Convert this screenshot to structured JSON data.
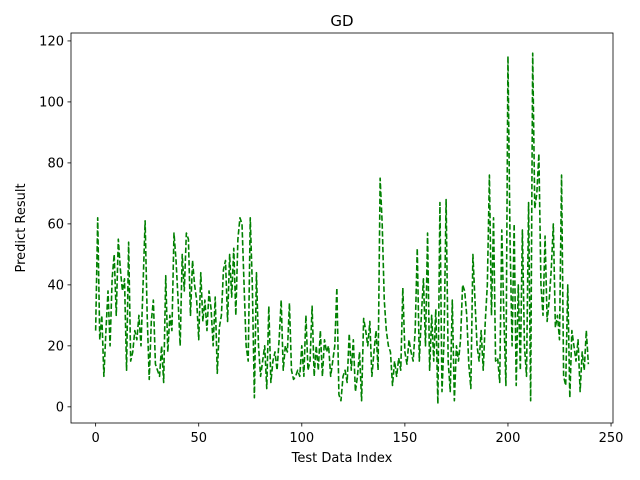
{
  "chart_data": {
    "type": "line",
    "title": "GD",
    "x_label": "Test Data Index",
    "y_label": "Predict Result",
    "color": "#008000",
    "linestyle": "dashed",
    "x": [
      0,
      1,
      2,
      3,
      4,
      5,
      6,
      7,
      8,
      9,
      10,
      11,
      12,
      13,
      14,
      15,
      16,
      17,
      18,
      19,
      20,
      21,
      22,
      23,
      24,
      25,
      26,
      27,
      28,
      29,
      30,
      31,
      32,
      33,
      34,
      35,
      36,
      37,
      38,
      39,
      40,
      41,
      42,
      43,
      44,
      45,
      46,
      47,
      48,
      49,
      50,
      51,
      52,
      53,
      54,
      55,
      56,
      57,
      58,
      59,
      60,
      61,
      62,
      63,
      64,
      65,
      66,
      67,
      68,
      69,
      70,
      71,
      72,
      73,
      74,
      75,
      76,
      77,
      78,
      79,
      80,
      81,
      82,
      83,
      84,
      85,
      86,
      87,
      88,
      89,
      90,
      91,
      92,
      93,
      94,
      95,
      96,
      97,
      98,
      99,
      100,
      101,
      102,
      103,
      104,
      105,
      106,
      107,
      108,
      109,
      110,
      111,
      112,
      113,
      114,
      115,
      116,
      117,
      118,
      119,
      120,
      121,
      122,
      123,
      124,
      125,
      126,
      127,
      128,
      129,
      130,
      131,
      132,
      133,
      134,
      135,
      136,
      137,
      138,
      139,
      140,
      141,
      142,
      143,
      144,
      145,
      146,
      147,
      148,
      149,
      150,
      151,
      152,
      153,
      154,
      155,
      156,
      157,
      158,
      159,
      160,
      161,
      162,
      163,
      164,
      165,
      166,
      167,
      168,
      169,
      170,
      171,
      172,
      173,
      174,
      175,
      176,
      177,
      178,
      179,
      180,
      181,
      182,
      183,
      184,
      185,
      186,
      187,
      188,
      189,
      190,
      191,
      192,
      193,
      194,
      195,
      196,
      197,
      198,
      199,
      200,
      201,
      202,
      203,
      204,
      205,
      206,
      207,
      208,
      209,
      210,
      211,
      212,
      213,
      214,
      215,
      216,
      217,
      218,
      219,
      220,
      221,
      222,
      223,
      224,
      225,
      226,
      227,
      228,
      229,
      230,
      231,
      232,
      233,
      234,
      235,
      236,
      237,
      238,
      239
    ],
    "values": [
      25,
      62,
      22,
      30,
      10,
      25,
      38,
      20,
      42,
      50,
      30,
      55,
      45,
      38,
      42,
      12,
      54,
      15,
      18,
      25,
      22,
      30,
      20,
      40,
      61,
      30,
      9,
      28,
      35,
      14,
      12,
      10,
      20,
      8,
      43,
      18,
      30,
      25,
      57,
      48,
      35,
      20,
      50,
      38,
      57,
      55,
      30,
      48,
      40,
      35,
      22,
      44,
      28,
      35,
      25,
      38,
      32,
      20,
      36,
      11,
      26,
      30,
      45,
      48,
      28,
      50,
      36,
      52,
      30,
      55,
      62,
      60,
      40,
      20,
      15,
      62,
      40,
      3,
      44,
      20,
      10,
      15,
      20,
      6,
      33,
      8,
      15,
      18,
      12,
      22,
      35,
      12,
      20,
      18,
      34,
      12,
      9,
      10,
      12,
      10,
      20,
      10,
      30,
      12,
      15,
      33,
      10,
      20,
      12,
      25,
      10,
      22,
      18,
      20,
      10,
      15,
      20,
      39,
      4,
      2,
      10,
      12,
      8,
      24,
      12,
      22,
      5,
      10,
      18,
      2,
      29,
      25,
      20,
      28,
      10,
      18,
      25,
      12,
      75,
      60,
      35,
      25,
      20,
      18,
      7,
      15,
      10,
      16,
      12,
      39,
      18,
      14,
      22,
      18,
      15,
      25,
      52,
      15,
      30,
      42,
      20,
      57,
      12,
      30,
      15,
      32,
      1,
      67,
      5,
      22,
      68,
      15,
      5,
      35,
      2,
      20,
      15,
      22,
      40,
      38,
      30,
      14,
      6,
      50,
      35,
      20,
      15,
      25,
      12,
      28,
      40,
      76,
      30,
      62,
      15,
      16,
      8,
      58,
      30,
      7,
      115,
      55,
      20,
      60,
      7,
      40,
      12,
      58,
      20,
      10,
      67,
      2,
      116,
      65,
      70,
      83,
      40,
      30,
      56,
      28,
      35,
      45,
      60,
      26,
      30,
      22,
      76,
      10,
      7,
      40,
      3,
      25,
      20,
      15,
      22,
      5,
      18,
      12,
      25,
      14
    ],
    "xlim": [
      -11.95,
      250.95
    ],
    "xticks": [
      0,
      50,
      100,
      150,
      200,
      250
    ],
    "ylim": [
      -5.3,
      122.6
    ],
    "yticks": [
      0,
      20,
      40,
      60,
      80,
      100,
      120
    ]
  }
}
